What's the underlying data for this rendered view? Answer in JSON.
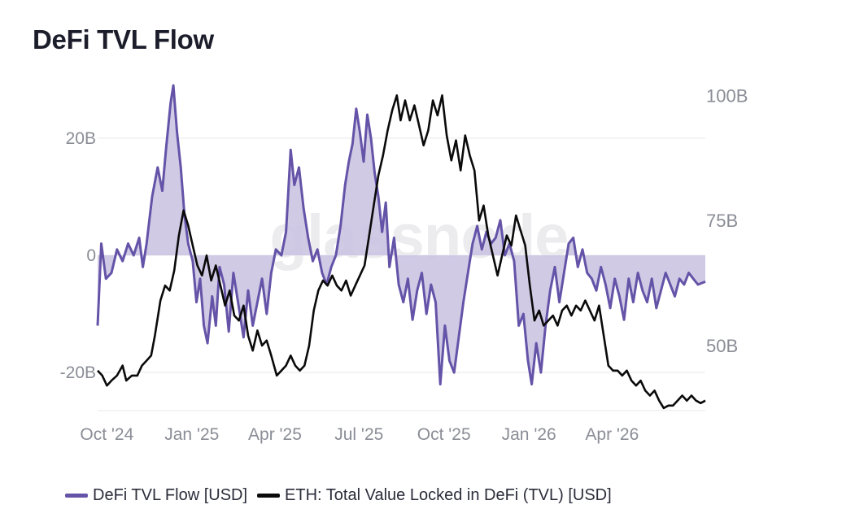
{
  "title": "DeFi TVL Flow",
  "watermark": "glassnode",
  "colors": {
    "flow_line": "#6553a8",
    "flow_fill": "#cbc4e2",
    "tvl_line": "#0a0a0a",
    "grid": "#e9e9ee",
    "axis_text": "#8a8d96"
  },
  "chart_data": {
    "type": "line",
    "title": "DeFi TVL Flow",
    "x_type": "date",
    "x_ticks": [
      "Oct '24",
      "Jan '25",
      "Apr '25",
      "Jul '25",
      "Oct '25",
      "Jan '26",
      "Apr '26"
    ],
    "x_tick_dates": [
      "2024-10-01",
      "2025-01-01",
      "2025-04-01",
      "2025-07-01",
      "2025-10-01",
      "2026-01-01",
      "2026-04-01"
    ],
    "x_range": [
      "2024-09-21",
      "2026-07-11"
    ],
    "left_axis": {
      "ticks": [
        "20B",
        "0",
        "-20B"
      ],
      "tick_values": [
        20,
        0,
        -20
      ],
      "range": [
        -26.5,
        29
      ],
      "unit": "B USD"
    },
    "right_axis": {
      "ticks": [
        "100B",
        "75B",
        "50B"
      ],
      "tick_values": [
        100,
        75,
        50
      ],
      "range": [
        37,
        102
      ],
      "unit": "B USD"
    },
    "grid": true,
    "legend_position": "bottom-left",
    "series": [
      {
        "name": "DeFi TVL Flow [USD]",
        "axis": "left",
        "style": "area-to-zero",
        "points": [
          [
            "2024-09-21",
            -12
          ],
          [
            "2024-09-25",
            2
          ],
          [
            "2024-09-30",
            -4
          ],
          [
            "2024-10-06",
            -3
          ],
          [
            "2024-10-12",
            1
          ],
          [
            "2024-10-18",
            -1
          ],
          [
            "2024-10-24",
            2
          ],
          [
            "2024-10-30",
            0
          ],
          [
            "2024-11-05",
            3
          ],
          [
            "2024-11-09",
            -2
          ],
          [
            "2024-11-13",
            2
          ],
          [
            "2024-11-19",
            10
          ],
          [
            "2024-11-25",
            15
          ],
          [
            "2024-11-30",
            11
          ],
          [
            "2024-12-04",
            18
          ],
          [
            "2024-12-09",
            26
          ],
          [
            "2024-12-12",
            29
          ],
          [
            "2024-12-16",
            21
          ],
          [
            "2024-12-20",
            15
          ],
          [
            "2024-12-24",
            7
          ],
          [
            "2024-12-28",
            2
          ],
          [
            "2025-01-02",
            -1
          ],
          [
            "2025-01-06",
            -8
          ],
          [
            "2025-01-10",
            -4
          ],
          [
            "2025-01-14",
            -12
          ],
          [
            "2025-01-18",
            -15
          ],
          [
            "2025-01-23",
            -7
          ],
          [
            "2025-01-27",
            -12
          ],
          [
            "2025-01-31",
            -2
          ],
          [
            "2025-02-05",
            -5
          ],
          [
            "2025-02-10",
            -13
          ],
          [
            "2025-02-15",
            -3
          ],
          [
            "2025-02-20",
            -8
          ],
          [
            "2025-02-26",
            -14
          ],
          [
            "2025-03-03",
            -6
          ],
          [
            "2025-03-08",
            -12
          ],
          [
            "2025-03-13",
            -8
          ],
          [
            "2025-03-18",
            -4
          ],
          [
            "2025-03-23",
            -10
          ],
          [
            "2025-03-28",
            -3
          ],
          [
            "2025-04-02",
            1
          ],
          [
            "2025-04-08",
            0
          ],
          [
            "2025-04-13",
            4
          ],
          [
            "2025-04-18",
            18
          ],
          [
            "2025-04-22",
            12
          ],
          [
            "2025-04-27",
            15
          ],
          [
            "2025-05-02",
            8
          ],
          [
            "2025-05-07",
            3
          ],
          [
            "2025-05-12",
            -1
          ],
          [
            "2025-05-17",
            1
          ],
          [
            "2025-05-22",
            -3
          ],
          [
            "2025-05-27",
            -5
          ],
          [
            "2025-06-01",
            -2
          ],
          [
            "2025-06-06",
            0
          ],
          [
            "2025-06-11",
            5
          ],
          [
            "2025-06-16",
            12
          ],
          [
            "2025-06-20",
            16
          ],
          [
            "2025-06-24",
            19
          ],
          [
            "2025-06-28",
            25
          ],
          [
            "2025-07-02",
            21
          ],
          [
            "2025-07-06",
            16
          ],
          [
            "2025-07-10",
            24
          ],
          [
            "2025-07-14",
            20
          ],
          [
            "2025-07-18",
            14
          ],
          [
            "2025-07-22",
            10
          ],
          [
            "2025-07-26",
            4
          ],
          [
            "2025-07-30",
            9
          ],
          [
            "2025-08-03",
            -2
          ],
          [
            "2025-08-08",
            3
          ],
          [
            "2025-08-13",
            -5
          ],
          [
            "2025-08-18",
            -8
          ],
          [
            "2025-08-23",
            -4
          ],
          [
            "2025-08-28",
            -11
          ],
          [
            "2025-09-02",
            -6
          ],
          [
            "2025-09-07",
            -3
          ],
          [
            "2025-09-12",
            -10
          ],
          [
            "2025-09-17",
            -5
          ],
          [
            "2025-09-22",
            -8
          ],
          [
            "2025-09-27",
            -22
          ],
          [
            "2025-10-02",
            -12
          ],
          [
            "2025-10-07",
            -18
          ],
          [
            "2025-10-12",
            -20
          ],
          [
            "2025-10-17",
            -14
          ],
          [
            "2025-10-22",
            -8
          ],
          [
            "2025-10-27",
            -3
          ],
          [
            "2025-11-01",
            2
          ],
          [
            "2025-11-06",
            5
          ],
          [
            "2025-11-11",
            1
          ],
          [
            "2025-11-16",
            4
          ],
          [
            "2025-11-21",
            2
          ],
          [
            "2025-11-26",
            3
          ],
          [
            "2025-12-01",
            6
          ],
          [
            "2025-12-06",
            0
          ],
          [
            "2025-12-11",
            2
          ],
          [
            "2025-12-16",
            -1
          ],
          [
            "2025-12-21",
            -12
          ],
          [
            "2025-12-26",
            -10
          ],
          [
            "2025-12-31",
            -18
          ],
          [
            "2026-01-04",
            -22
          ],
          [
            "2026-01-09",
            -15
          ],
          [
            "2026-01-14",
            -20
          ],
          [
            "2026-01-19",
            -12
          ],
          [
            "2026-01-24",
            -6
          ],
          [
            "2026-01-29",
            -2
          ],
          [
            "2026-02-03",
            -8
          ],
          [
            "2026-02-08",
            -3
          ],
          [
            "2026-02-13",
            2
          ],
          [
            "2026-02-18",
            3
          ],
          [
            "2026-02-23",
            -2
          ],
          [
            "2026-02-28",
            1
          ],
          [
            "2026-03-05",
            -3
          ],
          [
            "2026-03-10",
            -4
          ],
          [
            "2026-03-15",
            -6
          ],
          [
            "2026-03-20",
            -2
          ],
          [
            "2026-03-25",
            -5
          ],
          [
            "2026-03-30",
            -9
          ],
          [
            "2026-04-04",
            -4
          ],
          [
            "2026-04-09",
            -7
          ],
          [
            "2026-04-14",
            -11
          ],
          [
            "2026-04-19",
            -4
          ],
          [
            "2026-04-24",
            -8
          ],
          [
            "2026-04-29",
            -3
          ],
          [
            "2026-05-04",
            -6
          ],
          [
            "2026-05-09",
            -8
          ],
          [
            "2026-05-14",
            -4
          ],
          [
            "2026-05-19",
            -9
          ],
          [
            "2026-05-24",
            -6
          ],
          [
            "2026-05-29",
            -3
          ],
          [
            "2026-06-03",
            -5
          ],
          [
            "2026-06-08",
            -7
          ],
          [
            "2026-06-13",
            -4
          ],
          [
            "2026-06-18",
            -5
          ],
          [
            "2026-06-23",
            -3
          ],
          [
            "2026-06-28",
            -4
          ],
          [
            "2026-07-03",
            -5
          ],
          [
            "2026-07-11",
            -4.5
          ]
        ]
      },
      {
        "name": "ETH: Total Value Locked in DeFi (TVL) [USD]",
        "axis": "right",
        "style": "line",
        "points": [
          [
            "2024-09-21",
            45
          ],
          [
            "2024-09-26",
            44
          ],
          [
            "2024-10-01",
            42
          ],
          [
            "2024-10-06",
            43
          ],
          [
            "2024-10-12",
            44
          ],
          [
            "2024-10-18",
            46
          ],
          [
            "2024-10-22",
            43
          ],
          [
            "2024-10-28",
            44
          ],
          [
            "2024-11-03",
            44
          ],
          [
            "2024-11-08",
            46
          ],
          [
            "2024-11-13",
            47
          ],
          [
            "2024-11-18",
            48
          ],
          [
            "2024-11-22",
            52
          ],
          [
            "2024-11-28",
            59
          ],
          [
            "2024-12-03",
            62
          ],
          [
            "2024-12-08",
            61
          ],
          [
            "2024-12-13",
            65
          ],
          [
            "2024-12-18",
            72
          ],
          [
            "2024-12-23",
            77
          ],
          [
            "2024-12-28",
            74
          ],
          [
            "2025-01-02",
            70
          ],
          [
            "2025-01-07",
            66
          ],
          [
            "2025-01-12",
            64
          ],
          [
            "2025-01-17",
            68
          ],
          [
            "2025-01-22",
            63
          ],
          [
            "2025-01-27",
            66
          ],
          [
            "2025-02-01",
            62
          ],
          [
            "2025-02-06",
            58
          ],
          [
            "2025-02-11",
            61
          ],
          [
            "2025-02-16",
            56
          ],
          [
            "2025-02-21",
            55
          ],
          [
            "2025-02-26",
            58
          ],
          [
            "2025-03-03",
            52
          ],
          [
            "2025-03-08",
            49
          ],
          [
            "2025-03-13",
            53
          ],
          [
            "2025-03-18",
            50
          ],
          [
            "2025-03-23",
            51
          ],
          [
            "2025-03-28",
            48
          ],
          [
            "2025-04-03",
            44
          ],
          [
            "2025-04-08",
            45
          ],
          [
            "2025-04-13",
            46
          ],
          [
            "2025-04-18",
            48
          ],
          [
            "2025-04-23",
            46
          ],
          [
            "2025-04-28",
            45
          ],
          [
            "2025-05-03",
            46
          ],
          [
            "2025-05-08",
            50
          ],
          [
            "2025-05-13",
            57
          ],
          [
            "2025-05-18",
            61
          ],
          [
            "2025-05-23",
            63
          ],
          [
            "2025-05-28",
            62
          ],
          [
            "2025-06-02",
            64
          ],
          [
            "2025-06-07",
            62
          ],
          [
            "2025-06-12",
            61
          ],
          [
            "2025-06-17",
            63
          ],
          [
            "2025-06-22",
            60
          ],
          [
            "2025-06-27",
            62
          ],
          [
            "2025-07-02",
            64
          ],
          [
            "2025-07-07",
            66
          ],
          [
            "2025-07-12",
            72
          ],
          [
            "2025-07-17",
            78
          ],
          [
            "2025-07-22",
            84
          ],
          [
            "2025-07-27",
            88
          ],
          [
            "2025-08-01",
            93
          ],
          [
            "2025-08-06",
            97
          ],
          [
            "2025-08-11",
            100
          ],
          [
            "2025-08-15",
            95
          ],
          [
            "2025-08-20",
            99
          ],
          [
            "2025-08-25",
            95
          ],
          [
            "2025-08-30",
            98
          ],
          [
            "2025-09-04",
            94
          ],
          [
            "2025-09-09",
            90
          ],
          [
            "2025-09-14",
            93
          ],
          [
            "2025-09-19",
            99
          ],
          [
            "2025-09-24",
            96
          ],
          [
            "2025-09-29",
            100
          ],
          [
            "2025-10-04",
            92
          ],
          [
            "2025-10-09",
            87
          ],
          [
            "2025-10-14",
            91
          ],
          [
            "2025-10-19",
            85
          ],
          [
            "2025-10-24",
            92
          ],
          [
            "2025-10-29",
            88
          ],
          [
            "2025-11-03",
            85
          ],
          [
            "2025-11-08",
            75
          ],
          [
            "2025-11-13",
            78
          ],
          [
            "2025-11-18",
            72
          ],
          [
            "2025-11-23",
            68
          ],
          [
            "2025-11-28",
            64
          ],
          [
            "2025-12-03",
            68
          ],
          [
            "2025-12-08",
            72
          ],
          [
            "2025-12-13",
            70
          ],
          [
            "2025-12-18",
            76
          ],
          [
            "2025-12-23",
            73
          ],
          [
            "2025-12-28",
            70
          ],
          [
            "2026-01-02",
            62
          ],
          [
            "2026-01-07",
            55
          ],
          [
            "2026-01-12",
            57
          ],
          [
            "2026-01-17",
            54
          ],
          [
            "2026-01-22",
            55
          ],
          [
            "2026-01-27",
            56
          ],
          [
            "2026-02-01",
            54
          ],
          [
            "2026-02-06",
            57
          ],
          [
            "2026-02-11",
            58
          ],
          [
            "2026-02-16",
            56
          ],
          [
            "2026-02-21",
            58
          ],
          [
            "2026-02-26",
            57
          ],
          [
            "2026-03-03",
            59
          ],
          [
            "2026-03-08",
            57
          ],
          [
            "2026-03-13",
            55
          ],
          [
            "2026-03-18",
            58
          ],
          [
            "2026-03-23",
            52
          ],
          [
            "2026-03-28",
            46
          ],
          [
            "2026-04-02",
            45
          ],
          [
            "2026-04-07",
            45
          ],
          [
            "2026-04-12",
            44
          ],
          [
            "2026-04-17",
            45
          ],
          [
            "2026-04-22",
            43
          ],
          [
            "2026-04-27",
            42
          ],
          [
            "2026-05-02",
            43
          ],
          [
            "2026-05-07",
            41
          ],
          [
            "2026-05-12",
            40
          ],
          [
            "2026-05-17",
            41
          ],
          [
            "2026-05-22",
            39
          ],
          [
            "2026-05-27",
            37.5
          ],
          [
            "2026-06-01",
            38
          ],
          [
            "2026-06-06",
            38
          ],
          [
            "2026-06-11",
            39
          ],
          [
            "2026-06-16",
            40
          ],
          [
            "2026-06-21",
            39
          ],
          [
            "2026-06-26",
            40
          ],
          [
            "2026-07-01",
            39
          ],
          [
            "2026-07-06",
            38.5
          ],
          [
            "2026-07-11",
            39
          ]
        ]
      }
    ]
  },
  "legend": [
    {
      "label": "DeFi TVL Flow [USD]",
      "color": "#6553a8"
    },
    {
      "label": "ETH: Total Value Locked in DeFi (TVL) [USD]",
      "color": "#0a0a0a"
    }
  ]
}
